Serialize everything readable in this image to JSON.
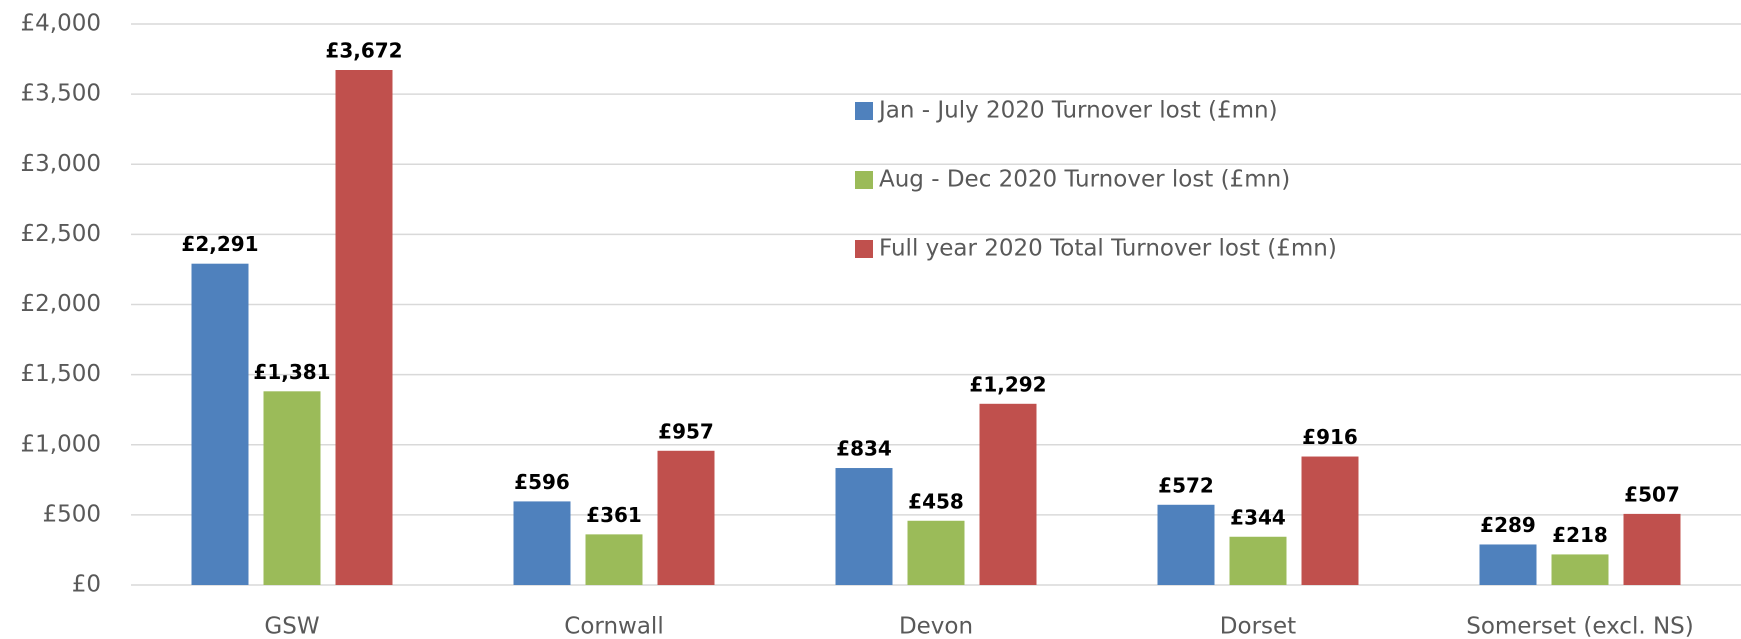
{
  "chart_data": {
    "type": "bar",
    "categories": [
      "GSW",
      "Cornwall",
      "Devon",
      "Dorset",
      "Somerset (excl. NS)"
    ],
    "series": [
      {
        "name": "Jan - July 2020 Turnover lost (£mn)",
        "color": "#4f81bd",
        "values": [
          2291,
          596,
          834,
          572,
          289
        ],
        "value_labels": [
          "£2,291",
          "£596",
          "£834",
          "£572",
          "£289"
        ]
      },
      {
        "name": "Aug - Dec 2020 Turnover lost (£mn)",
        "color": "#9bbb59",
        "values": [
          1381,
          361,
          458,
          344,
          218
        ],
        "value_labels": [
          "£1,381",
          "£361",
          "£458",
          "£344",
          "£218"
        ]
      },
      {
        "name": "Full year 2020 Total Turnover lost (£mn)",
        "color": "#c0504d",
        "values": [
          3672,
          957,
          1292,
          916,
          507
        ],
        "value_labels": [
          "£3,672",
          "£957",
          "£1,292",
          "£916",
          "£507"
        ]
      }
    ],
    "ylim": [
      0,
      4000
    ],
    "yticks": [
      {
        "value": 0,
        "label": "£0"
      },
      {
        "value": 500,
        "label": "£500"
      },
      {
        "value": 1000,
        "label": "£1,000"
      },
      {
        "value": 1500,
        "label": "£1,500"
      },
      {
        "value": 2000,
        "label": "£2,000"
      },
      {
        "value": 2500,
        "label": "£2,500"
      },
      {
        "value": 3000,
        "label": "£3,000"
      },
      {
        "value": 3500,
        "label": "£3,500"
      },
      {
        "value": 4000,
        "label": "£4,000"
      }
    ],
    "grid": true,
    "legend": "upper-center"
  }
}
